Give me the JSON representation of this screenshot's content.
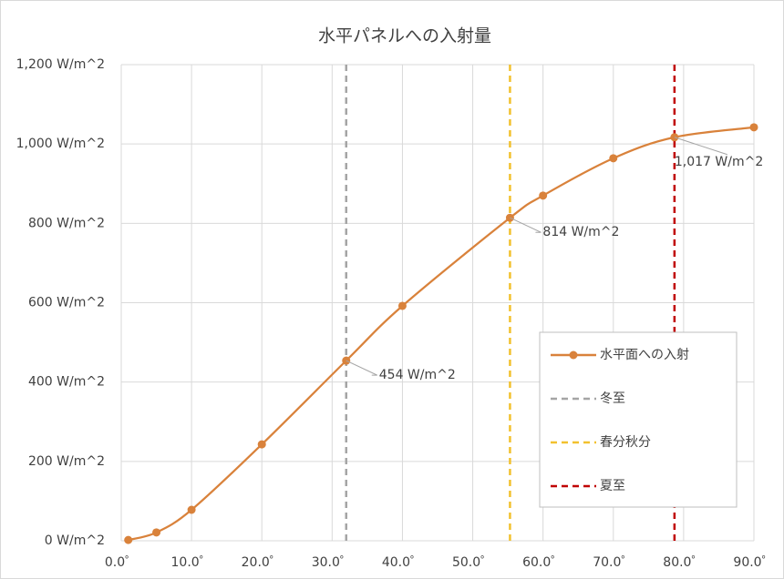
{
  "chart_data": {
    "type": "line",
    "title": "水平パネルへの入射量",
    "xlim": [
      0,
      90
    ],
    "xticks": [
      {
        "value": 0,
        "label": "0.0゜"
      },
      {
        "value": 10,
        "label": "10.0゜"
      },
      {
        "value": 20,
        "label": "20.0゜"
      },
      {
        "value": 30,
        "label": "30.0゜"
      },
      {
        "value": 40,
        "label": "40.0゜"
      },
      {
        "value": 50,
        "label": "50.0゜"
      },
      {
        "value": 60,
        "label": "60.0゜"
      },
      {
        "value": 70,
        "label": "70.0゜"
      },
      {
        "value": 80,
        "label": "80.0゜"
      },
      {
        "value": 90,
        "label": "90.0゜"
      }
    ],
    "ylim": [
      0,
      1200
    ],
    "yticks": [
      {
        "value": 0,
        "label": "0 W/m^2"
      },
      {
        "value": 200,
        "label": "200 W/m^2"
      },
      {
        "value": 400,
        "label": "400 W/m^2"
      },
      {
        "value": 600,
        "label": "600 W/m^2"
      },
      {
        "value": 800,
        "label": "800 W/m^2"
      },
      {
        "value": 1000,
        "label": "1,000 W/m^2"
      },
      {
        "value": 1200,
        "label": "1,200 W/m^2"
      }
    ],
    "grid": true,
    "legend": "right",
    "series": [
      {
        "name": "水平面への入射",
        "color": "#d9823b",
        "smooth": true,
        "markers": true,
        "x": [
          1,
          5,
          10,
          20,
          32,
          40,
          55.3,
          60,
          70,
          78.7,
          90
        ],
        "values": [
          2,
          21,
          78,
          243,
          454,
          592,
          814,
          870,
          964,
          1017,
          1042
        ],
        "value_labels": [
          null,
          null,
          null,
          null,
          "454 W/m^2",
          null,
          "814 W/m^2",
          null,
          null,
          "1,017 W/m^2",
          null
        ]
      },
      {
        "name": "冬至",
        "color": "#a5a5a5",
        "dashed": true,
        "x": [
          32,
          32
        ],
        "values": [
          0,
          1200
        ]
      },
      {
        "name": "春分秋分",
        "color": "#f2c12e",
        "dashed": true,
        "x": [
          55.3,
          55.3
        ],
        "values": [
          0,
          1200
        ]
      },
      {
        "name": "夏至",
        "color": "#c00000",
        "dashed": true,
        "x": [
          78.7,
          78.7
        ],
        "values": [
          0,
          1200
        ]
      }
    ]
  }
}
